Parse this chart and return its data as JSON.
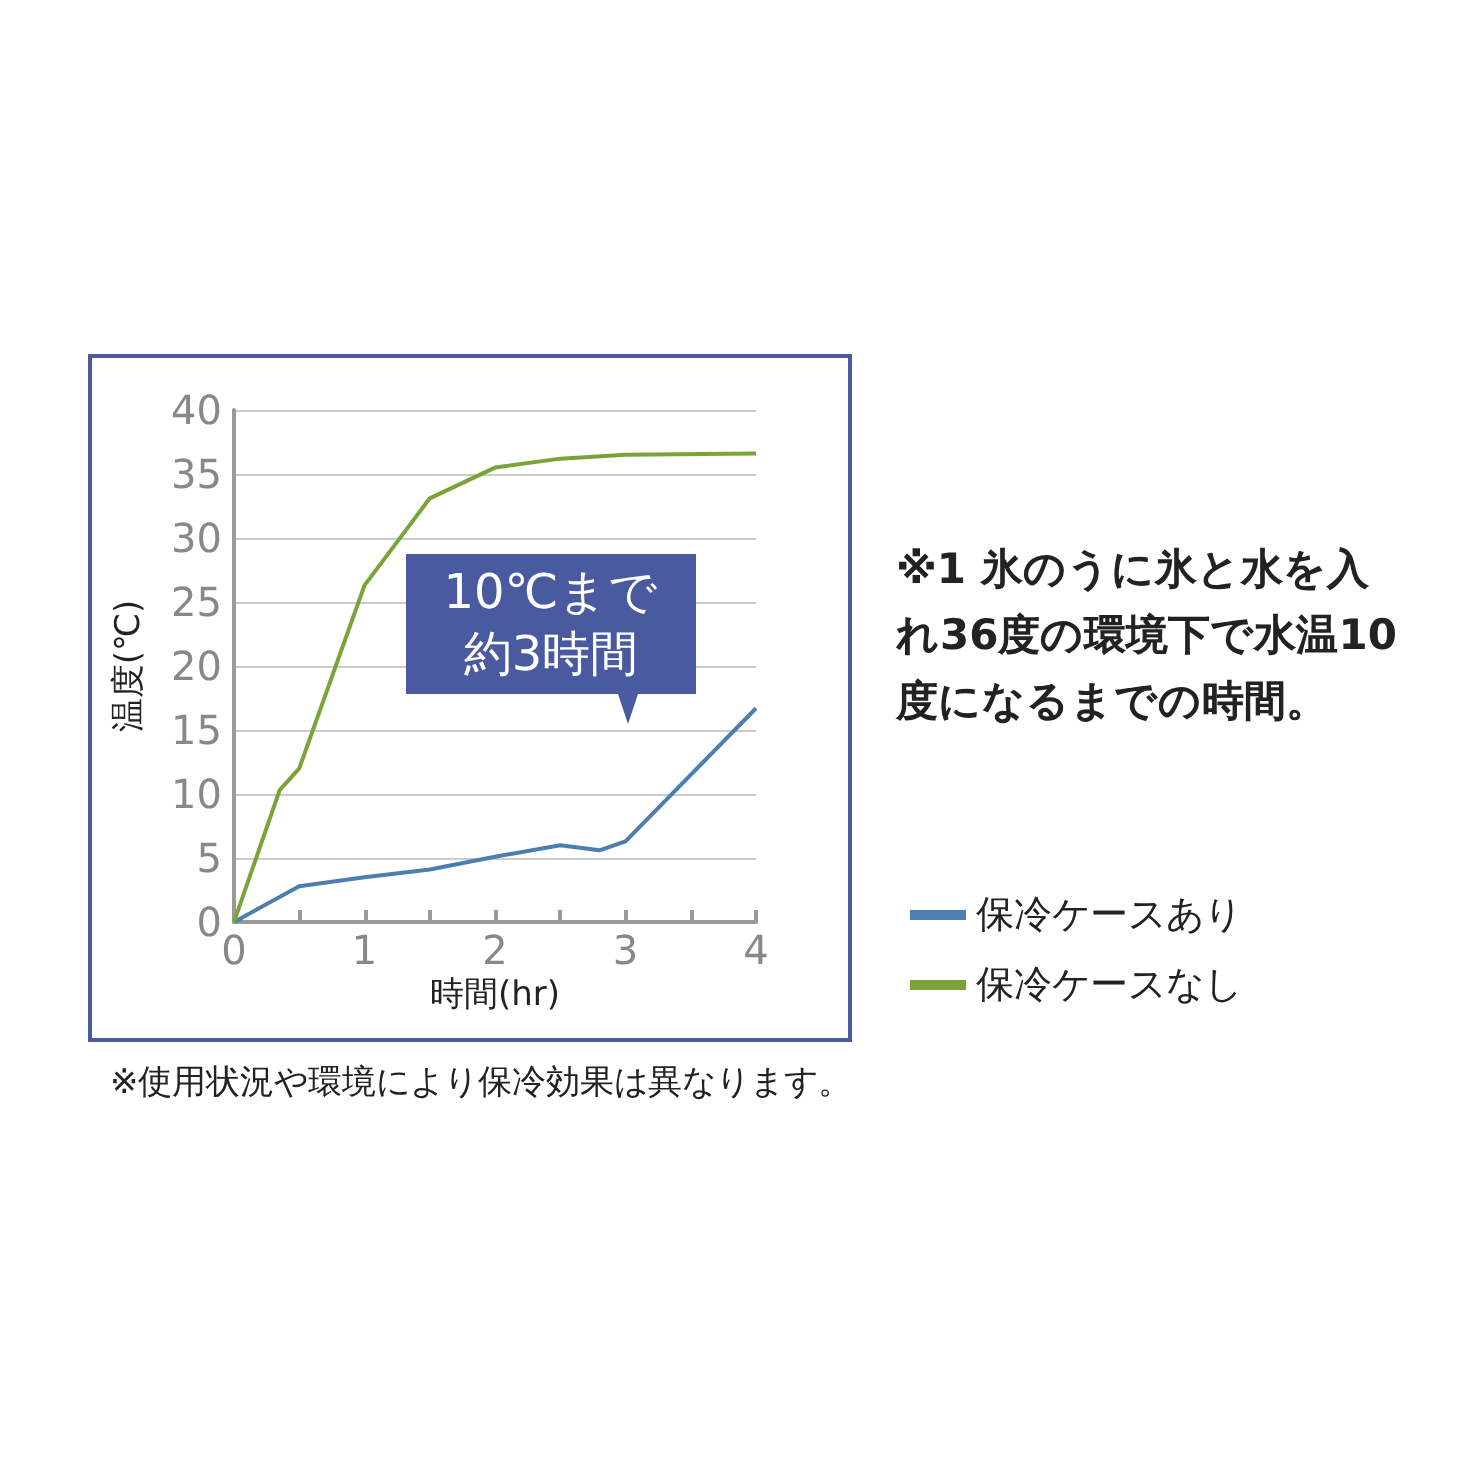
{
  "chart_data": {
    "type": "line",
    "xlabel": "時間(hr)",
    "ylabel": "温度(℃)",
    "xlim": [
      0,
      4
    ],
    "xticks": [
      0,
      {
        "value": 0.5,
        "label": null
      },
      1,
      {
        "value": 1.5,
        "label": null
      },
      2,
      {
        "value": 2.5,
        "label": null
      },
      3,
      {
        "value": 3.5,
        "label": null
      },
      4
    ],
    "ylim": [
      0,
      40
    ],
    "yticks": [
      0,
      5,
      10,
      15,
      20,
      25,
      30,
      35,
      40
    ],
    "grid": "y",
    "legend": "right",
    "marker": "none",
    "line_style": "solid",
    "series": [
      {
        "name": "保冷ケースあり",
        "color": "#4a7fb0",
        "x": [
          0,
          0.5,
          1,
          1.5,
          2,
          2.5,
          2.8,
          3,
          4
        ],
        "values": [
          0,
          2.8,
          3.5,
          4.1,
          5.1,
          6.0,
          5.6,
          6.3,
          16.7
        ]
      },
      {
        "name": "保冷ケースなし",
        "color": "#7aa33a",
        "x": [
          0,
          0.35,
          0.5,
          1,
          1.5,
          2,
          2.5,
          3,
          4
        ],
        "values": [
          0,
          10.3,
          12.0,
          26.3,
          33.1,
          35.5,
          36.2,
          36.5,
          36.6
        ]
      }
    ],
    "annotations": [
      "10℃まで約3時間",
      "※1 氷のうに氷と水を入れ36度の環境下で水温10度になるまでの時間。",
      "※使用状況や環境により保冷効果は異なります。"
    ]
  }
}
